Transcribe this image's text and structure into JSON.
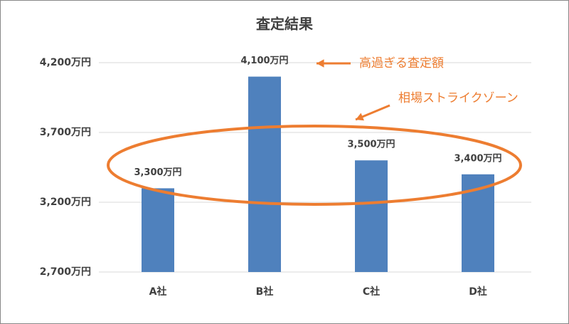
{
  "chart_data": {
    "type": "bar",
    "title": "査定結果",
    "categories": [
      "A社",
      "B社",
      "C社",
      "D社"
    ],
    "values": [
      3300,
      4100,
      3500,
      3400
    ],
    "value_labels": [
      "3,300万円",
      "4,100万円",
      "3,500万円",
      "3,400万円"
    ],
    "color": "#4f81bd",
    "ylim": [
      2700,
      4200
    ],
    "yticks": [
      {
        "value": 2700,
        "label": "2,700万円"
      },
      {
        "value": 3200,
        "label": "3,200万円"
      },
      {
        "value": 3700,
        "label": "3,700万円"
      },
      {
        "value": 4200,
        "label": "4,200万円"
      }
    ],
    "grid": true,
    "annotations": [
      "高過ぎる査定額",
      "相場ストライクゾーン"
    ],
    "annotation_color": "#ed7d31"
  }
}
